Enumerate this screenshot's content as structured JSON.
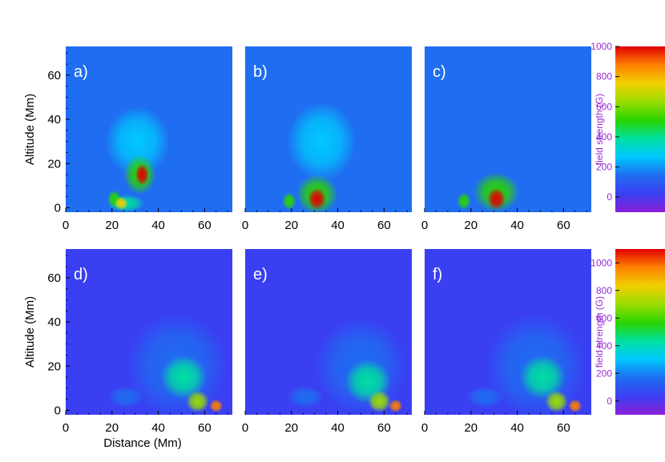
{
  "chart_data": [
    {
      "type": "heatmap",
      "panel": "a)",
      "xlabel": "",
      "ylabel": "Altitude (Mm)",
      "xlim": [
        0,
        72
      ],
      "ylim": [
        -2,
        73
      ],
      "xticks": [
        "0",
        "20",
        "40",
        "60"
      ],
      "yticks": [
        "0",
        "20",
        "40",
        "60"
      ],
      "background": "#1f6df0",
      "blobs": [
        {
          "x": 31,
          "y": 30,
          "rx": 14,
          "ry": 16,
          "value": 220
        },
        {
          "x": 32,
          "y": 15,
          "rx": 7,
          "ry": 9,
          "value": 520
        },
        {
          "x": 33,
          "y": 15,
          "rx": 3,
          "ry": 5,
          "value": 950
        },
        {
          "x": 26,
          "y": 2,
          "rx": 8,
          "ry": 4,
          "value": 420
        },
        {
          "x": 21,
          "y": 4,
          "rx": 3,
          "ry": 4,
          "value": 520
        },
        {
          "x": 24,
          "y": 2,
          "rx": 3,
          "ry": 3,
          "value": 700
        }
      ]
    },
    {
      "type": "heatmap",
      "panel": "b)",
      "xlim": [
        0,
        72
      ],
      "ylim": [
        -2,
        73
      ],
      "xticks": [
        "0",
        "20",
        "40",
        "60"
      ],
      "background": "#1f6df0",
      "blobs": [
        {
          "x": 33,
          "y": 30,
          "rx": 15,
          "ry": 18,
          "value": 210
        },
        {
          "x": 31,
          "y": 6,
          "rx": 9,
          "ry": 9,
          "value": 480
        },
        {
          "x": 31,
          "y": 4,
          "rx": 4,
          "ry": 5,
          "value": 950
        },
        {
          "x": 19,
          "y": 3,
          "rx": 3,
          "ry": 4,
          "value": 480
        }
      ]
    },
    {
      "type": "heatmap",
      "panel": "c)",
      "xlim": [
        0,
        72
      ],
      "ylim": [
        -2,
        73
      ],
      "xticks": [
        "0",
        "20",
        "40",
        "60"
      ],
      "background": "#1f6df0",
      "blobs": [
        {
          "x": 33,
          "y": 28,
          "rx": 15,
          "ry": 16,
          "value": 200
        },
        {
          "x": 31,
          "y": 7,
          "rx": 10,
          "ry": 9,
          "value": 470
        },
        {
          "x": 31,
          "y": 4,
          "rx": 4,
          "ry": 5,
          "value": 950
        },
        {
          "x": 17,
          "y": 3,
          "rx": 3,
          "ry": 4,
          "value": 450
        }
      ]
    },
    {
      "type": "heatmap",
      "panel": "d)",
      "xlabel": "Distance (Mm)",
      "ylabel": "Altitude (Mm)",
      "xlim": [
        0,
        72
      ],
      "ylim": [
        -2,
        73
      ],
      "xticks": [
        "0",
        "20",
        "40",
        "60"
      ],
      "yticks": [
        "0",
        "20",
        "40",
        "60"
      ],
      "background": "#3a3ff2",
      "blobs": [
        {
          "x": 48,
          "y": 20,
          "rx": 22,
          "ry": 24,
          "value": 110
        },
        {
          "x": 51,
          "y": 15,
          "rx": 10,
          "ry": 10,
          "value": 380
        },
        {
          "x": 57,
          "y": 4,
          "rx": 5,
          "ry": 5,
          "value": 650
        },
        {
          "x": 65,
          "y": 2,
          "rx": 3,
          "ry": 3,
          "value": 1000
        },
        {
          "x": 26,
          "y": 6,
          "rx": 8,
          "ry": 5,
          "value": 150
        }
      ]
    },
    {
      "type": "heatmap",
      "panel": "e)",
      "xlim": [
        0,
        72
      ],
      "ylim": [
        -2,
        73
      ],
      "xticks": [
        "0",
        "20",
        "40",
        "60"
      ],
      "background": "#3a3ff2",
      "blobs": [
        {
          "x": 50,
          "y": 20,
          "rx": 20,
          "ry": 22,
          "value": 100
        },
        {
          "x": 53,
          "y": 13,
          "rx": 10,
          "ry": 10,
          "value": 370
        },
        {
          "x": 58,
          "y": 4,
          "rx": 5,
          "ry": 5,
          "value": 650
        },
        {
          "x": 65,
          "y": 2,
          "rx": 3,
          "ry": 3,
          "value": 1000
        },
        {
          "x": 26,
          "y": 6,
          "rx": 8,
          "ry": 5,
          "value": 140
        }
      ]
    },
    {
      "type": "heatmap",
      "panel": "f)",
      "xlim": [
        0,
        72
      ],
      "ylim": [
        -2,
        73
      ],
      "xticks": [
        "0",
        "20",
        "40",
        "60"
      ],
      "background": "#3a3ff2",
      "blobs": [
        {
          "x": 48,
          "y": 20,
          "rx": 22,
          "ry": 24,
          "value": 110
        },
        {
          "x": 51,
          "y": 15,
          "rx": 10,
          "ry": 10,
          "value": 380
        },
        {
          "x": 57,
          "y": 4,
          "rx": 5,
          "ry": 5,
          "value": 650
        },
        {
          "x": 65,
          "y": 2,
          "rx": 3,
          "ry": 3,
          "value": 1000
        },
        {
          "x": 26,
          "y": 6,
          "rx": 8,
          "ry": 5,
          "value": 140
        }
      ]
    }
  ],
  "colorbars": [
    {
      "title": "field strength (G)",
      "range": [
        -100,
        1000
      ],
      "ticks": [
        "0",
        "200",
        "400",
        "600",
        "800",
        "1000"
      ]
    },
    {
      "title": "field strength (G)",
      "range": [
        -100,
        1100
      ],
      "ticks": [
        "0",
        "200",
        "400",
        "600",
        "800",
        "1000"
      ]
    }
  ],
  "colormap": [
    "#8a1fd8",
    "#3a3ff2",
    "#1f6df0",
    "#00c8ff",
    "#00e0a0",
    "#2bd400",
    "#9adc00",
    "#f0d000",
    "#ff8000",
    "#e00000"
  ]
}
